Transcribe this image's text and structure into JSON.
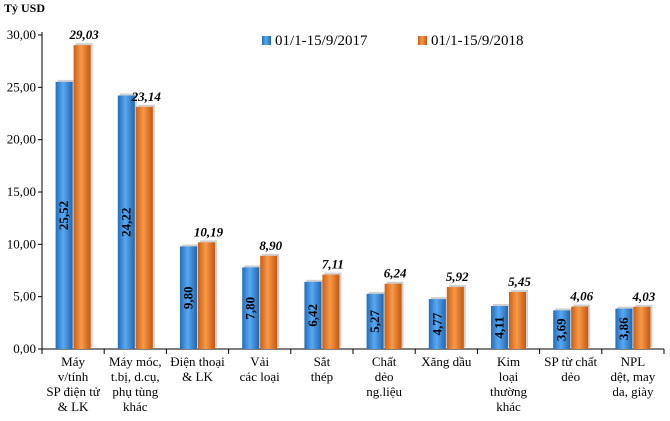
{
  "chart_data": {
    "type": "bar",
    "title": "",
    "ylabel": "Tỷ USD",
    "xlabel": "",
    "ylim": [
      0,
      30
    ],
    "ytick_labels": [
      "0,00",
      "5,00",
      "10,00",
      "15,00",
      "20,00",
      "25,00",
      "30,00"
    ],
    "grid": false,
    "legend_position": "top-right",
    "categories": [
      [
        "Máy",
        "v/tính",
        "SP điện tử",
        "& LK"
      ],
      [
        "Máy móc,",
        "t.bị, d.cụ,",
        "phụ tùng",
        "khác"
      ],
      [
        "Điện thoại",
        "& LK"
      ],
      [
        "Vải",
        "các loại"
      ],
      [
        "Sắt",
        "thép"
      ],
      [
        "Chất",
        "dẻo",
        "ng.liệu"
      ],
      [
        "Xăng dầu"
      ],
      [
        "Kim",
        "loại",
        "thường",
        "khác"
      ],
      [
        "SP từ chất",
        "dẻo"
      ],
      [
        "NPL",
        "dệt, may",
        "da, giày"
      ]
    ],
    "series": [
      {
        "name": "01/1-15/9/2017",
        "color": "#2f87d6",
        "values": [
          25.52,
          24.22,
          9.8,
          7.8,
          6.42,
          5.27,
          4.77,
          4.11,
          3.69,
          3.86
        ],
        "labels": [
          "25,52",
          "24,22",
          "9,80",
          "7,80",
          "6,42",
          "5,27",
          "4,77",
          "4,11",
          "3,69",
          "3,86"
        ]
      },
      {
        "name": "01/1-15/9/2018",
        "color": "#e8711c",
        "values": [
          29.03,
          23.14,
          10.19,
          8.9,
          7.11,
          6.24,
          5.92,
          5.45,
          4.06,
          4.03
        ],
        "labels": [
          "29,03",
          "23,14",
          "10,19",
          "8,90",
          "7,11",
          "6,24",
          "5,92",
          "5,45",
          "4,06",
          "4,03"
        ]
      }
    ]
  }
}
